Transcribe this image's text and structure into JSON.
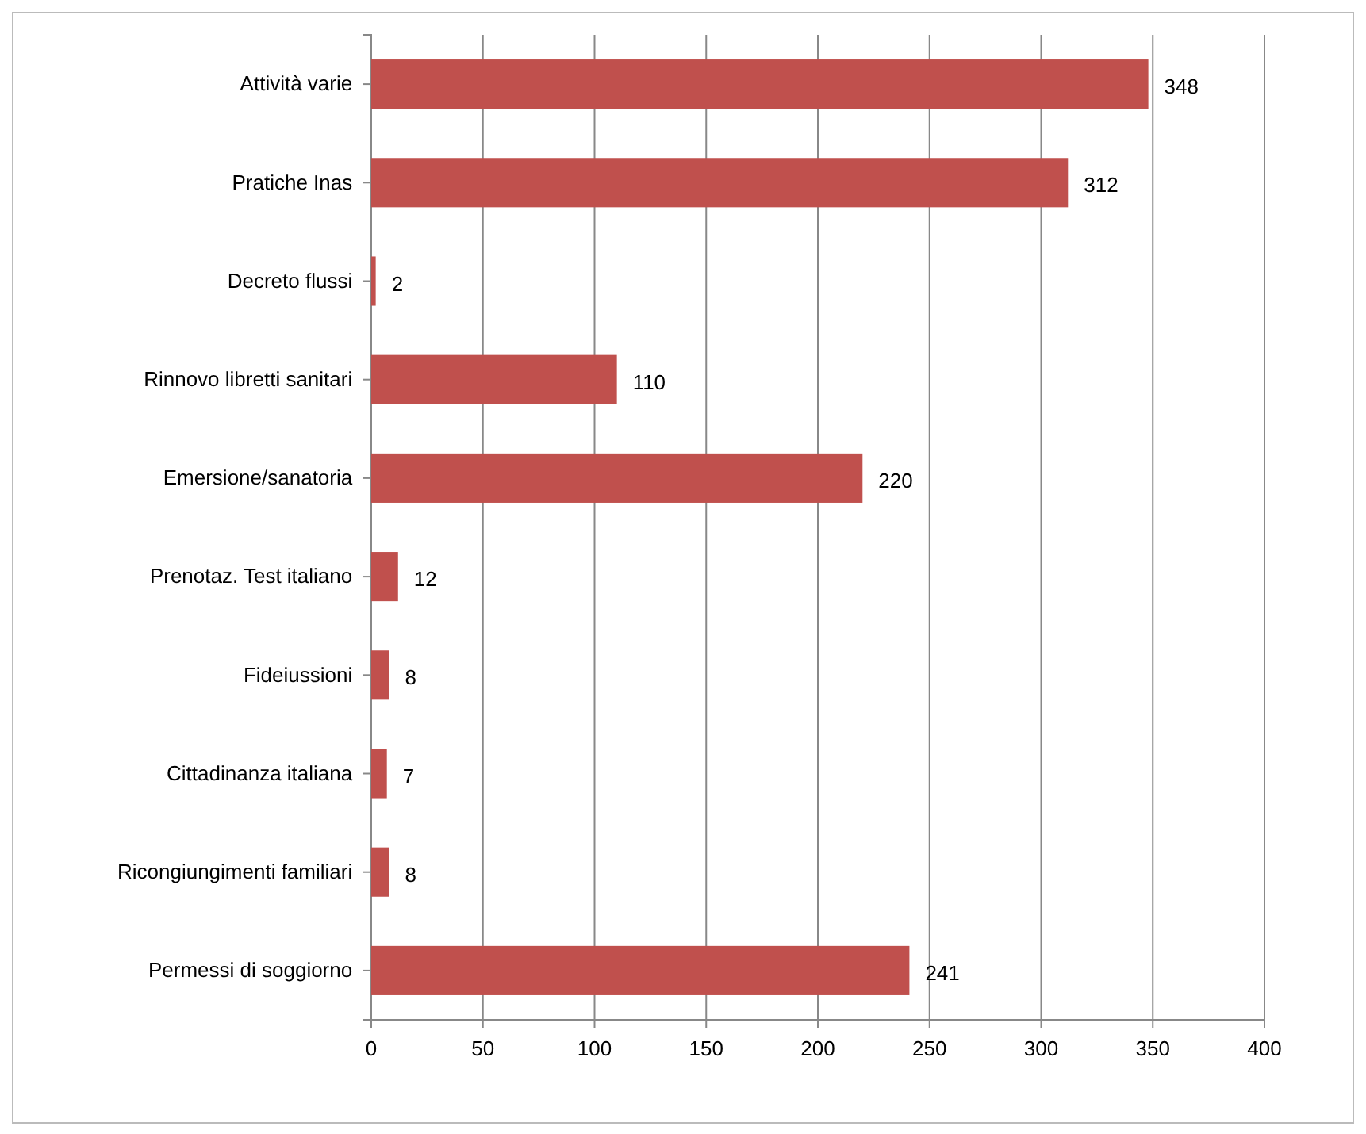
{
  "chart_data": {
    "type": "bar",
    "orientation": "horizontal",
    "categories": [
      "Attività varie",
      "Pratiche Inas",
      "Decreto flussi",
      "Rinnovo libretti sanitari",
      "Emersione/sanatoria",
      "Prenotaz. Test italiano",
      "Fideiussioni",
      "Cittadinanza  italiana",
      "Ricongiungimenti familiari",
      "Permessi di soggiorno"
    ],
    "values": [
      348,
      312,
      2,
      110,
      220,
      12,
      8,
      7,
      8,
      241
    ],
    "color": "#c0504d",
    "xlim": [
      0,
      400
    ],
    "xticks": [
      0,
      50,
      100,
      150,
      200,
      250,
      300,
      350,
      400
    ],
    "grid": "x",
    "data_labels": true
  }
}
